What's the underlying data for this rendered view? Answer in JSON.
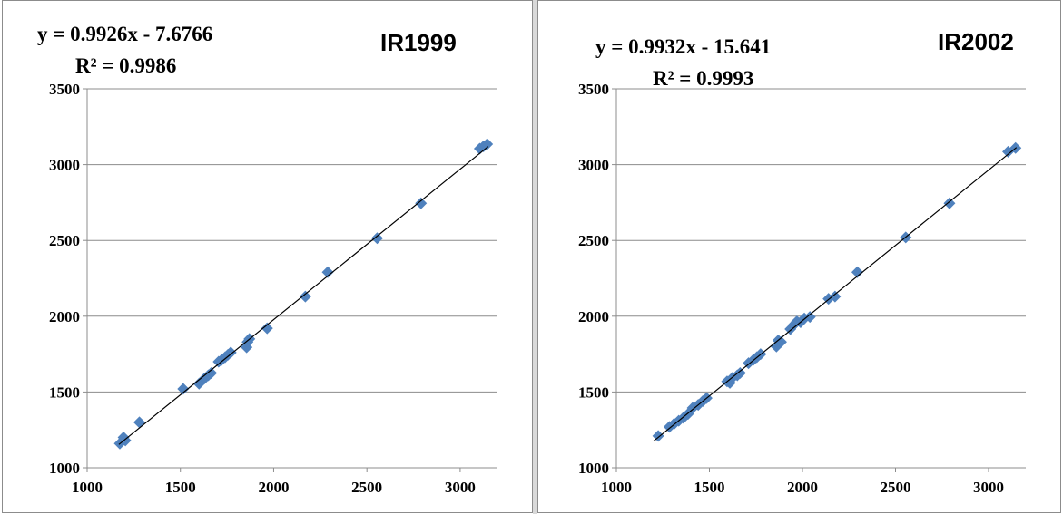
{
  "chart_data": [
    {
      "type": "scatter",
      "title": "IR1999",
      "equation": "y = 0.9926x - 7.6766",
      "r_squared": "R² = 0.9986",
      "xlim": [
        1000,
        3200
      ],
      "ylim": [
        1000,
        3500
      ],
      "xticks": [
        "1000",
        "1500",
        "2000",
        "2500",
        "3000"
      ],
      "yticks": [
        "1000",
        "1500",
        "2000",
        "2500",
        "3000",
        "3500"
      ],
      "grid": "horizontal",
      "colors": {
        "marker": "#4f81bd",
        "trendline": "#000000",
        "grid": "#8c8c8c"
      },
      "trendline": {
        "slope": 0.9926,
        "intercept": -7.6766,
        "x_range": [
          1170,
          3150
        ]
      },
      "points": [
        [
          1175,
          1160
        ],
        [
          1195,
          1200
        ],
        [
          1205,
          1180
        ],
        [
          1280,
          1300
        ],
        [
          1515,
          1520
        ],
        [
          1600,
          1555
        ],
        [
          1630,
          1590
        ],
        [
          1650,
          1610
        ],
        [
          1665,
          1625
        ],
        [
          1705,
          1700
        ],
        [
          1720,
          1710
        ],
        [
          1740,
          1730
        ],
        [
          1755,
          1745
        ],
        [
          1770,
          1760
        ],
        [
          1855,
          1795
        ],
        [
          1860,
          1830
        ],
        [
          1870,
          1850
        ],
        [
          1965,
          1920
        ],
        [
          2170,
          2130
        ],
        [
          2290,
          2290
        ],
        [
          2555,
          2515
        ],
        [
          2790,
          2745
        ],
        [
          3105,
          3105
        ],
        [
          3125,
          3120
        ],
        [
          3145,
          3135
        ]
      ]
    },
    {
      "type": "scatter",
      "title": "IR2002",
      "equation": "y = 0.9932x - 15.641",
      "r_squared": "R² = 0.9993",
      "xlim": [
        1000,
        3200
      ],
      "ylim": [
        1000,
        3500
      ],
      "xticks": [
        "1000",
        "1500",
        "2000",
        "2500",
        "3000"
      ],
      "yticks": [
        "1000",
        "1500",
        "2000",
        "2500",
        "3000",
        "3500"
      ],
      "grid": "horizontal",
      "colors": {
        "marker": "#4f81bd",
        "trendline": "#000000",
        "grid": "#8c8c8c"
      },
      "trendline": {
        "slope": 0.9932,
        "intercept": -15.641,
        "x_range": [
          1200,
          3150
        ]
      },
      "points": [
        [
          1225,
          1210
        ],
        [
          1285,
          1270
        ],
        [
          1310,
          1290
        ],
        [
          1335,
          1310
        ],
        [
          1360,
          1330
        ],
        [
          1385,
          1355
        ],
        [
          1410,
          1395
        ],
        [
          1440,
          1415
        ],
        [
          1465,
          1440
        ],
        [
          1485,
          1460
        ],
        [
          1595,
          1570
        ],
        [
          1610,
          1560
        ],
        [
          1625,
          1595
        ],
        [
          1650,
          1610
        ],
        [
          1665,
          1625
        ],
        [
          1710,
          1690
        ],
        [
          1735,
          1710
        ],
        [
          1755,
          1730
        ],
        [
          1775,
          1750
        ],
        [
          1860,
          1800
        ],
        [
          1870,
          1840
        ],
        [
          1885,
          1830
        ],
        [
          1935,
          1915
        ],
        [
          1955,
          1945
        ],
        [
          1970,
          1965
        ],
        [
          1990,
          1960
        ],
        [
          2010,
          1985
        ],
        [
          2040,
          1995
        ],
        [
          2140,
          2115
        ],
        [
          2175,
          2130
        ],
        [
          2295,
          2290
        ],
        [
          2555,
          2520
        ],
        [
          2790,
          2745
        ],
        [
          3105,
          3085
        ],
        [
          3145,
          3110
        ]
      ]
    }
  ]
}
